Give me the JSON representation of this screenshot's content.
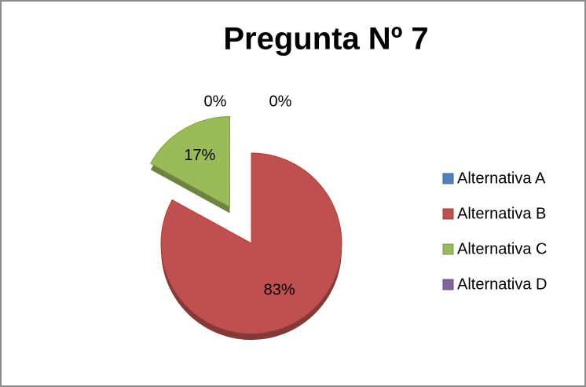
{
  "chart_data": {
    "type": "pie",
    "title": "Pregunta Nº 7",
    "categories": [
      "Alternativa A",
      "Alternativa B",
      "Alternativa C",
      "Alternativa D"
    ],
    "values": [
      0,
      83,
      17,
      0
    ],
    "value_labels": [
      "0%",
      "83%",
      "17%",
      "0%"
    ],
    "colors": [
      "#4f81bd",
      "#c0504d",
      "#9bbb59",
      "#8064a2"
    ],
    "legend": "right"
  }
}
